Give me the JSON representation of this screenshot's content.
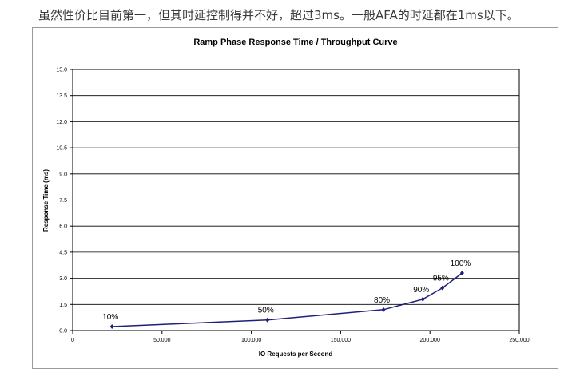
{
  "caption": "虽然性价比目前第一，但其时延控制得并不好，超过3ms。一般AFA的时延都在1ms以下。",
  "colors": {
    "series": "#1f1f7a",
    "grid": "#000000",
    "plot_bg": "#ffffff",
    "frame": "#9a9a9a"
  },
  "chart_data": {
    "type": "line",
    "title": "Ramp Phase Response Time / Throughput Curve",
    "xlabel": "IO Requests  per Second",
    "ylabel": "Response Time (ms)",
    "xlim": [
      0,
      250000
    ],
    "ylim": [
      0,
      15
    ],
    "x_ticks": [
      "0",
      "50,000",
      "100,000",
      "150,000",
      "200,000",
      "250,000"
    ],
    "y_ticks": [
      "0.0",
      "1.5",
      "3.0",
      "4.5",
      "6.0",
      "7.5",
      "9.0",
      "10.5",
      "12.0",
      "13.5",
      "15.0"
    ],
    "grid": true,
    "legend": "none",
    "series": [
      {
        "x": [
          22000,
          109000,
          174000,
          196000,
          207000,
          218000
        ],
        "y": [
          0.23,
          0.61,
          1.2,
          1.8,
          2.45,
          3.3
        ],
        "labels": [
          "10%",
          "50%",
          "80%",
          "90%",
          "95%",
          "100%"
        ]
      }
    ]
  }
}
